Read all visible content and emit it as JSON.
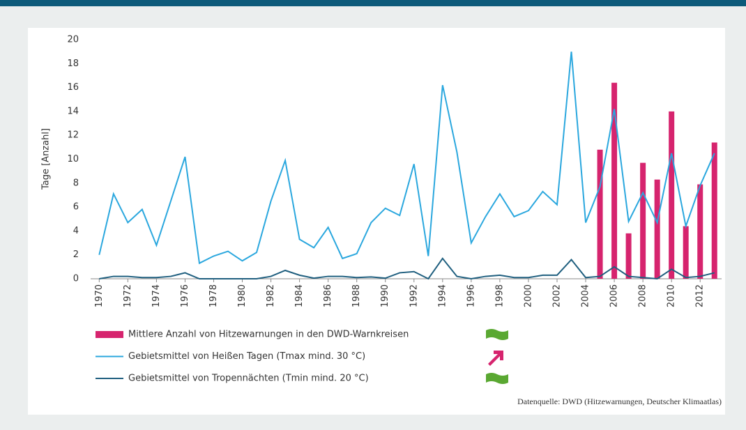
{
  "chart_data": {
    "type": "combo",
    "ylabel": "Tage [Anzahl]",
    "source": "Datenquelle: DWD (Hitzewarnungen, Deutscher Klimaatlas)",
    "x": [
      1970,
      1971,
      1972,
      1973,
      1974,
      1975,
      1976,
      1977,
      1978,
      1979,
      1980,
      1981,
      1982,
      1983,
      1984,
      1985,
      1986,
      1987,
      1988,
      1989,
      1990,
      1991,
      1992,
      1993,
      1994,
      1995,
      1996,
      1997,
      1998,
      1999,
      2000,
      2001,
      2002,
      2003,
      2004,
      2005,
      2006,
      2007,
      2008,
      2009,
      2010,
      2011,
      2012,
      2013
    ],
    "xlim": [
      1969.4,
      2013.5
    ],
    "xticks": [
      1970,
      1972,
      1974,
      1976,
      1978,
      1980,
      1982,
      1984,
      1986,
      1988,
      1990,
      1992,
      1994,
      1996,
      1998,
      2000,
      2002,
      2004,
      2006,
      2008,
      2010,
      2012
    ],
    "ylim": [
      0,
      20
    ],
    "yticks": [
      0,
      2,
      4,
      6,
      8,
      10,
      12,
      14,
      16,
      18,
      20
    ],
    "grid": false,
    "series": [
      {
        "name": "Mittlere Anzahl von Hitzewarnungen in den DWD-Warnkreisen",
        "type": "bar",
        "color": "#d6246e",
        "values": [
          null,
          null,
          null,
          null,
          null,
          null,
          null,
          null,
          null,
          null,
          null,
          null,
          null,
          null,
          null,
          null,
          null,
          null,
          null,
          null,
          null,
          null,
          null,
          null,
          null,
          null,
          null,
          null,
          null,
          null,
          null,
          null,
          null,
          null,
          null,
          10.8,
          16.4,
          3.8,
          9.7,
          8.3,
          14.0,
          4.4,
          7.9,
          11.4
        ]
      },
      {
        "name": "Gebietsmittel von Heißen Tagen (Tmax mind. 30 °C)",
        "type": "line",
        "color": "#2aa7de",
        "values": [
          2.0,
          7.1,
          4.7,
          5.8,
          2.8,
          6.5,
          10.2,
          1.3,
          1.9,
          2.3,
          1.5,
          2.2,
          6.5,
          9.9,
          3.3,
          2.6,
          4.3,
          1.7,
          2.1,
          4.7,
          5.9,
          5.3,
          9.6,
          1.9,
          16.2,
          10.6,
          3.0,
          5.2,
          7.1,
          5.2,
          5.7,
          7.3,
          6.2,
          19.0,
          4.7,
          7.7,
          14.2,
          4.8,
          7.2,
          4.7,
          10.5,
          4.4,
          7.8,
          10.5
        ]
      },
      {
        "name": "Gebietsmittel von Tropennächten (Tmin mind. 20 °C)",
        "type": "line",
        "color": "#1f5f7f",
        "values": [
          0,
          0.2,
          0.2,
          0.1,
          0.1,
          0.2,
          0.5,
          0,
          0,
          0,
          0,
          0,
          0.2,
          0.7,
          0.3,
          0.05,
          0.2,
          0.2,
          0.1,
          0.15,
          0.05,
          0.5,
          0.6,
          0,
          1.7,
          0.2,
          0,
          0.2,
          0.3,
          0.1,
          0.1,
          0.3,
          0.3,
          1.6,
          0.1,
          0.2,
          1.0,
          0.2,
          0.1,
          0,
          0.8,
          0.1,
          0.2,
          0.5
        ]
      }
    ]
  }
}
